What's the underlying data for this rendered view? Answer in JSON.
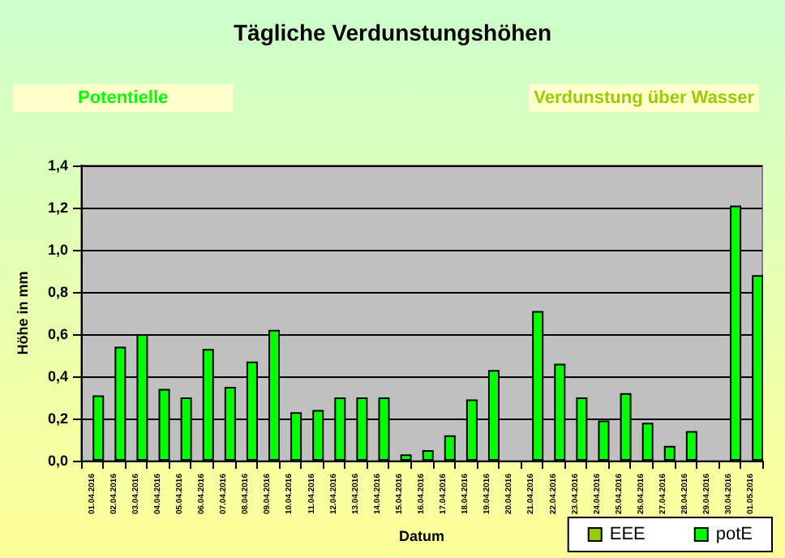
{
  "chart_data": {
    "type": "bar",
    "title": "Tägliche Verdunstungshöhen",
    "annotations": [
      "Potentielle",
      "Verdunstung über Wasser"
    ],
    "xlabel": "Datum",
    "ylabel": "Höhe in mm",
    "categories": [
      "01.04.2016",
      "02.04.2016",
      "03.04.2016",
      "04.04.2016",
      "05.04.2016",
      "06.04.2016",
      "07.04.2016",
      "08.04.2016",
      "09.04.2016",
      "10.04.2016",
      "11.04.2016",
      "12.04.2016",
      "13.04.2016",
      "14.04.2016",
      "15.04.2016",
      "16.04.2016",
      "17.04.2016",
      "18.04.2016",
      "19.04.2016",
      "20.04.2016",
      "21.04.2016",
      "22.04.2016",
      "23.04.2016",
      "24.04.2016",
      "25.04.2016",
      "26.04.2016",
      "27.04.2016",
      "28.04.2016",
      "29.04.2016",
      "30.04.2016",
      "01.05.2016"
    ],
    "series": [
      {
        "name": "EEE",
        "color": "#99cc00",
        "values": [
          null,
          null,
          null,
          null,
          null,
          null,
          null,
          null,
          null,
          null,
          null,
          null,
          null,
          null,
          null,
          null,
          null,
          null,
          null,
          null,
          null,
          null,
          null,
          null,
          null,
          null,
          null,
          null,
          null,
          null,
          null
        ]
      },
      {
        "name": "potE",
        "color": "#00ff00",
        "values": [
          0.31,
          0.54,
          0.6,
          0.34,
          0.3,
          0.53,
          0.35,
          0.47,
          0.62,
          0.23,
          0.24,
          0.3,
          0.3,
          0.3,
          0.03,
          0.05,
          0.12,
          0.29,
          0.43,
          null,
          0.71,
          0.46,
          0.3,
          0.19,
          0.32,
          0.18,
          0.07,
          0.14,
          null,
          1.21,
          0.88
        ]
      }
    ],
    "ylim": [
      0,
      1.4
    ],
    "yticks": [
      {
        "value": 0,
        "label": "0,0"
      },
      {
        "value": 0.2,
        "label": "0,2"
      },
      {
        "value": 0.4,
        "label": "0,4"
      },
      {
        "value": 0.6,
        "label": "0,6"
      },
      {
        "value": 0.8,
        "label": "0,8"
      },
      {
        "value": 1,
        "label": "1,0"
      },
      {
        "value": 1.2,
        "label": "1,2"
      },
      {
        "value": 1.4,
        "label": "1,4"
      }
    ],
    "grid": "y",
    "legend": "bottom right"
  }
}
